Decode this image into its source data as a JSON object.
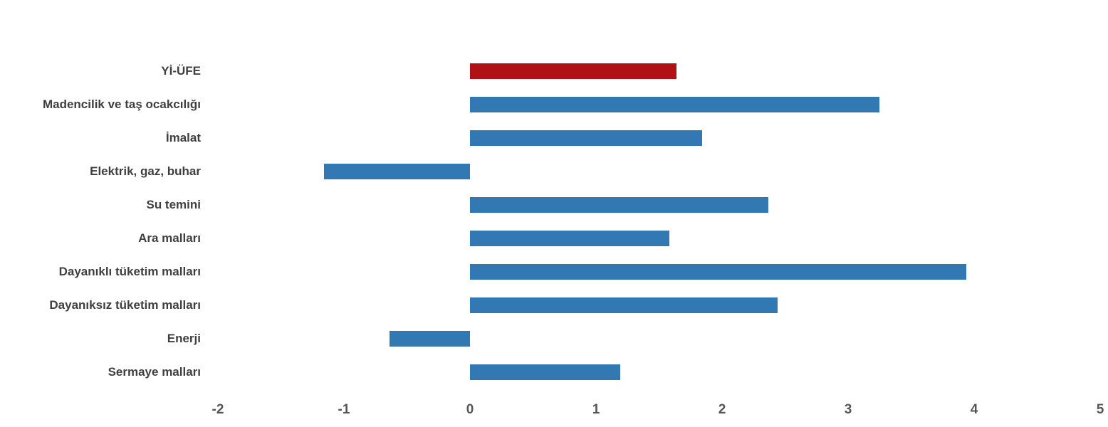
{
  "chart_data": {
    "type": "bar",
    "orientation": "horizontal",
    "title": "",
    "xlabel": "",
    "ylabel": "",
    "grid": false,
    "legend": null,
    "xlim": [
      -2,
      5
    ],
    "x_ticks": [
      "-2",
      "-1",
      "0",
      "1",
      "2",
      "3",
      "4",
      "5"
    ],
    "categories": [
      "Yİ-ÜFE",
      "Madencilik ve taş ocakcılığı",
      "İmalat",
      "Elektrik, gaz, buhar",
      "Su temini",
      "Ara malları",
      "Dayanıklı tüketim malları",
      "Dayanıksız tüketim malları",
      "Enerji",
      "Sermaye malları"
    ],
    "values": [
      1.64,
      3.25,
      1.84,
      -1.16,
      2.37,
      1.58,
      3.94,
      2.44,
      -0.64,
      1.19
    ],
    "highlight_category": "Yİ-ÜFE",
    "colors": {
      "highlight_bar": "#b01117",
      "default_bar": "#3279b4",
      "category_label": "#3f3f3f",
      "tick_label": "#555555",
      "background": "#ffffff"
    }
  }
}
